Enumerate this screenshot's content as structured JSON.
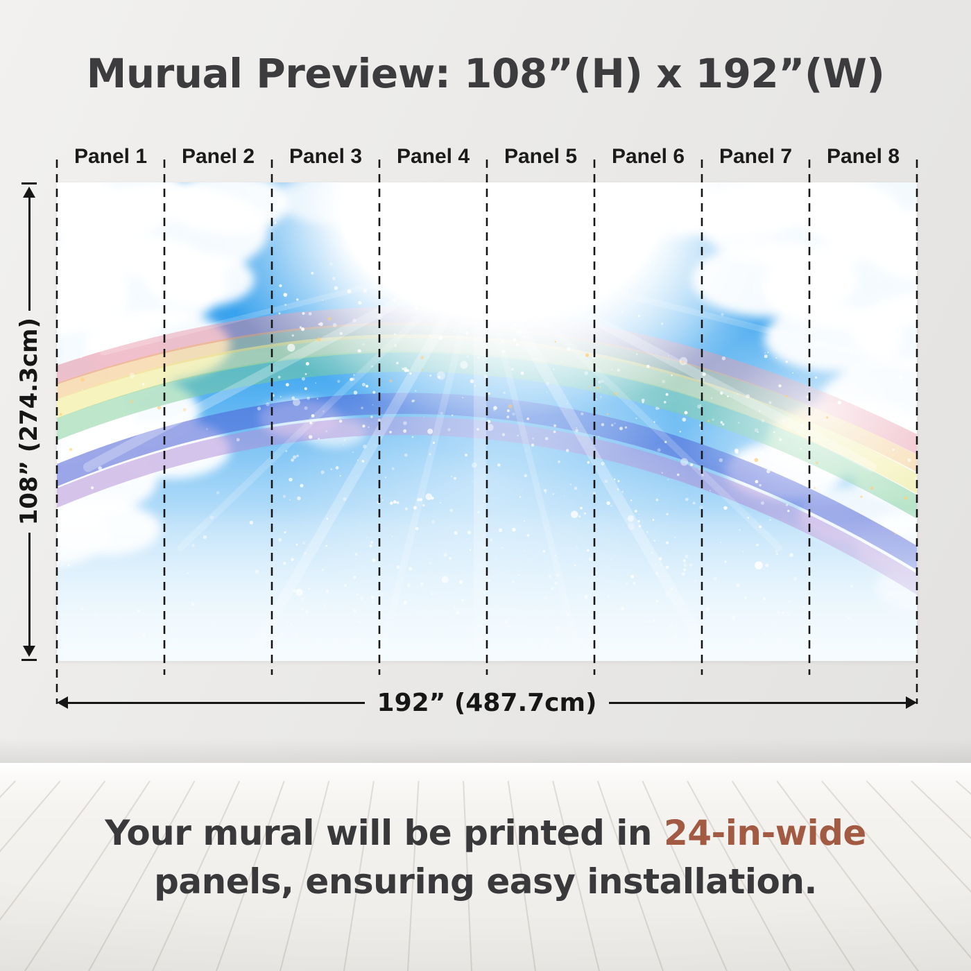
{
  "title": "Murual Preview: 108”(H) x 192”(W)",
  "panels": {
    "labels": [
      "Panel 1",
      "Panel 2",
      "Panel 3",
      "Panel 4",
      "Panel 5",
      "Panel 6",
      "Panel 7",
      "Panel 8"
    ]
  },
  "dimensions": {
    "height_label": "108” (274.3cm)",
    "width_label": "192” (487.7cm)"
  },
  "caption": {
    "line1_prefix": "Your mural will be printed in ",
    "highlight": "24-in-wide",
    "line2": "panels, ensuring easy installation.",
    "highlight_color": "#a25a42",
    "text_color": "#39393b"
  },
  "colors": {
    "wall": "#ebeae8",
    "annotation": "#161616",
    "title_text": "#3c3c3e"
  },
  "mural": {
    "sky_top": "#1f93e8",
    "sky_upper": "#46aaf0",
    "sky_low": "#bfe2fa",
    "sky_bottom": "#f5fbfe",
    "cloud": "#ffffff",
    "sparkle": "#ffffff",
    "sparkle_warm": "#ffcf7a",
    "rainbow_bands": [
      "#df7d95",
      "#eeb257",
      "#efe98a",
      "#7ccd97",
      "#4a5ed6",
      "#b08ad6"
    ]
  }
}
